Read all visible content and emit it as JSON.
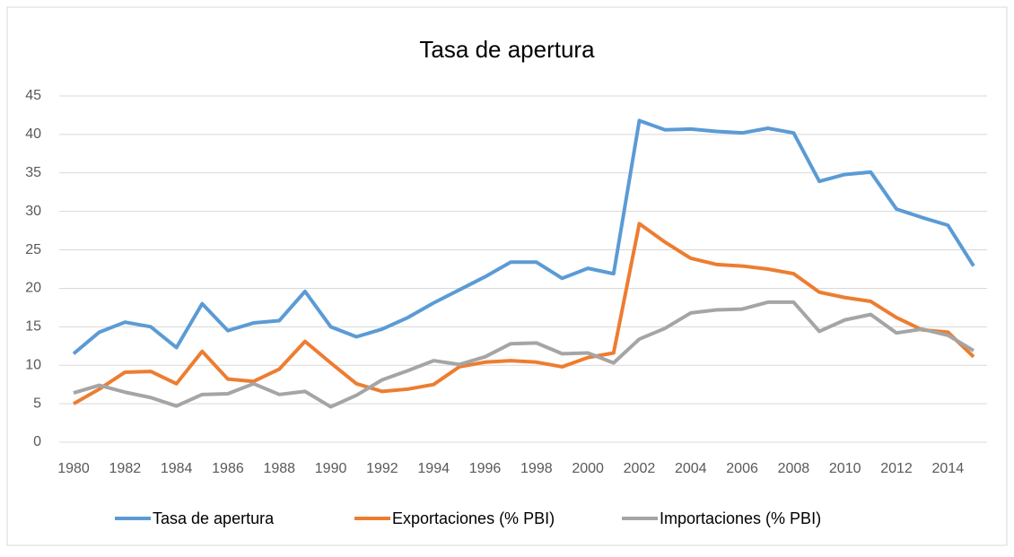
{
  "chart_data": {
    "type": "line",
    "title": "Tasa de apertura",
    "x": [
      1980,
      1981,
      1982,
      1983,
      1984,
      1985,
      1986,
      1987,
      1988,
      1989,
      1990,
      1991,
      1992,
      1993,
      1994,
      1995,
      1996,
      1997,
      1998,
      1999,
      2000,
      2001,
      2002,
      2003,
      2004,
      2005,
      2006,
      2007,
      2008,
      2009,
      2010,
      2011,
      2012,
      2013,
      2014,
      2015
    ],
    "xlim": [
      1980,
      2015
    ],
    "xticks": [
      1980,
      1982,
      1984,
      1986,
      1988,
      1990,
      1992,
      1994,
      1996,
      1998,
      2000,
      2002,
      2004,
      2006,
      2008,
      2010,
      2012,
      2014
    ],
    "ylim": [
      0,
      45
    ],
    "yticks": [
      0,
      5,
      10,
      15,
      20,
      25,
      30,
      35,
      40,
      45
    ],
    "grid": true,
    "legend": "bottom",
    "series": [
      {
        "name": "Tasa de apertura",
        "color": "#5b9bd5",
        "values": [
          11.5,
          14.3,
          15.6,
          15.0,
          12.3,
          18.0,
          14.5,
          15.5,
          15.8,
          19.6,
          15.0,
          13.7,
          14.7,
          16.2,
          18.1,
          19.8,
          21.5,
          23.4,
          23.4,
          21.3,
          22.6,
          21.9,
          41.8,
          40.6,
          40.7,
          40.4,
          40.2,
          40.8,
          40.2,
          33.9,
          34.8,
          35.1,
          30.3,
          29.2,
          28.2,
          22.9
        ]
      },
      {
        "name": "Exportaciones (% PBI)",
        "color": "#ed7d31",
        "values": [
          5.0,
          6.9,
          9.1,
          9.2,
          7.6,
          11.8,
          8.2,
          7.9,
          9.5,
          13.1,
          10.3,
          7.6,
          6.6,
          6.9,
          7.5,
          9.8,
          10.4,
          10.6,
          10.4,
          9.8,
          11.0,
          11.6,
          28.4,
          26.0,
          23.9,
          23.1,
          22.9,
          22.5,
          21.9,
          19.5,
          18.8,
          18.3,
          16.2,
          14.6,
          14.3,
          11.1
        ]
      },
      {
        "name": "Importaciones (% PBI)",
        "color": "#a5a5a5",
        "values": [
          6.4,
          7.4,
          6.5,
          5.8,
          4.7,
          6.2,
          6.3,
          7.6,
          6.2,
          6.6,
          4.6,
          6.1,
          8.1,
          9.3,
          10.6,
          10.1,
          11.1,
          12.8,
          12.9,
          11.5,
          11.6,
          10.3,
          13.4,
          14.8,
          16.8,
          17.2,
          17.3,
          18.2,
          18.2,
          14.4,
          15.9,
          16.6,
          14.2,
          14.7,
          13.9,
          11.9
        ]
      }
    ]
  }
}
